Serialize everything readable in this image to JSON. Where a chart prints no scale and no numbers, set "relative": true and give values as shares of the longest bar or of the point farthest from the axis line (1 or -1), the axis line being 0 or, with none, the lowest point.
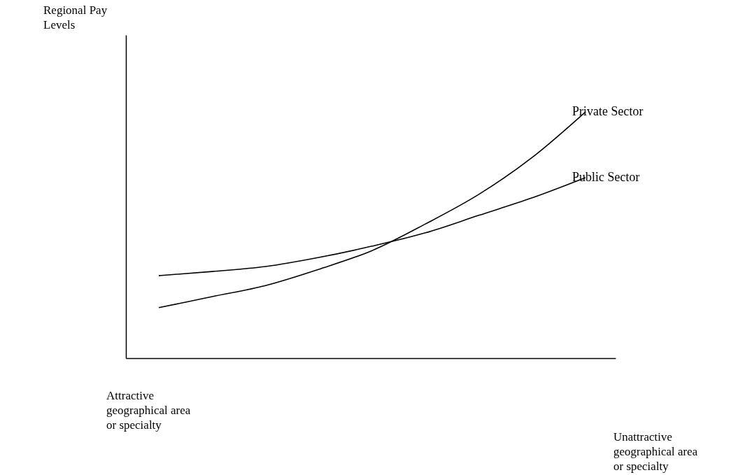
{
  "chart_data": {
    "type": "line",
    "relative": true,
    "categories": [
      null,
      null,
      null,
      null,
      null,
      null,
      null,
      null,
      null
    ],
    "series": [
      {
        "name": "Private Sector",
        "color": "#000000",
        "values": [
          0.205,
          0.25,
          0.295,
          0.361,
          0.437,
          0.545,
          0.665,
          0.815,
          1
        ]
      },
      {
        "name": "Public Sector",
        "color": "#000000",
        "values": [
          0.335,
          0.352,
          0.372,
          0.409,
          0.455,
          0.509,
          0.58,
          0.651,
          0.733
        ]
      }
    ],
    "annotations": [
      "Regional Pay Levels",
      "Attractive geographical area or specialty",
      "Unattractive geographical area or specialty"
    ],
    "legend": false,
    "grid": false
  }
}
